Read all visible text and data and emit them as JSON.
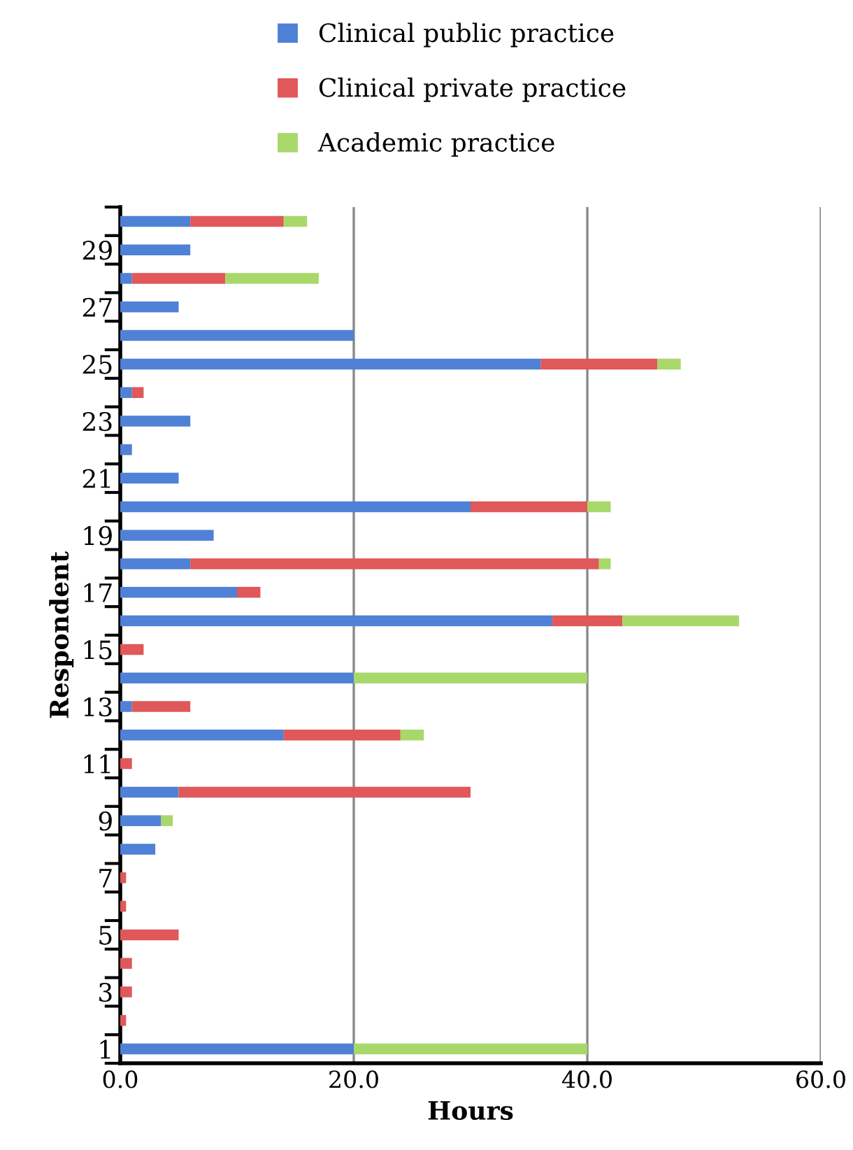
{
  "chart_data": {
    "type": "bar",
    "orientation": "horizontal",
    "stacked": true,
    "xlabel": "Hours",
    "ylabel": "Respondent",
    "categories": [
      null,
      "29",
      null,
      "27",
      null,
      "25",
      null,
      "23",
      null,
      "21",
      null,
      "19",
      null,
      "17",
      null,
      "15",
      null,
      "13",
      null,
      "11",
      null,
      "9",
      null,
      "7",
      null,
      "5",
      null,
      "3",
      null,
      "1"
    ],
    "series": [
      {
        "name": "Clinical public practice",
        "color": "#4f81d6",
        "values": [
          6,
          6,
          1,
          5,
          20,
          36,
          1,
          6,
          1,
          5,
          30,
          8,
          6,
          10,
          37,
          0,
          20,
          1,
          14,
          0,
          5,
          3.5,
          3,
          0,
          0,
          0,
          0,
          0,
          0,
          20
        ]
      },
      {
        "name": "Clinical private practice",
        "color": "#e0585a",
        "values": [
          8,
          0,
          8,
          0,
          0,
          10,
          1,
          0,
          0,
          0,
          10,
          0,
          35,
          2,
          6,
          2,
          0,
          5,
          10,
          1,
          25,
          0,
          0,
          0.5,
          0.5,
          5,
          1,
          1,
          0.5,
          0
        ]
      },
      {
        "name": "Academic practice",
        "color": "#a8d86a",
        "values": [
          2,
          0,
          8,
          0,
          0,
          2,
          0,
          0,
          0,
          0,
          2,
          0,
          1,
          0,
          10,
          0,
          20,
          0,
          2,
          0,
          0,
          1,
          0,
          0,
          0,
          0,
          0,
          0,
          0,
          20
        ]
      }
    ],
    "xlim": [
      0,
      60
    ],
    "xticks": [
      {
        "value": 0,
        "label": "0.0"
      },
      {
        "value": 20,
        "label": "20.0"
      },
      {
        "value": 40,
        "label": "40.0"
      },
      {
        "value": 60,
        "label": "60.0"
      }
    ],
    "grid": "x",
    "legend": "top"
  }
}
